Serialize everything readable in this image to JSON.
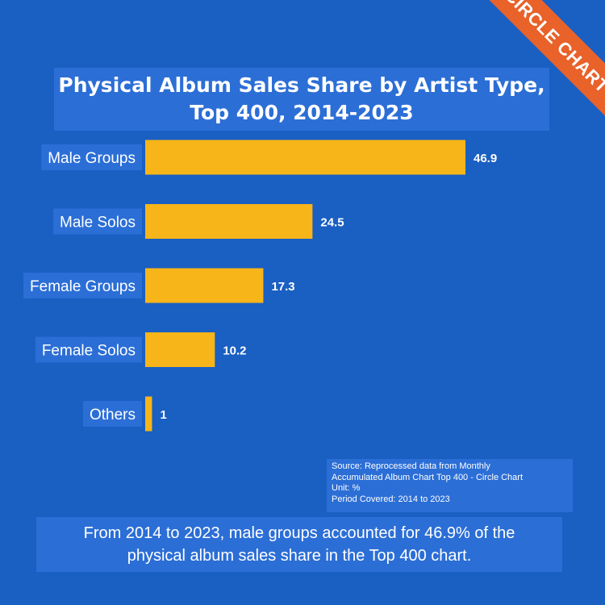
{
  "brand": {
    "ribbon_text": "CIRCLE CHART",
    "ribbon_color": "#e8622a"
  },
  "colors": {
    "background": "#1a5fc2",
    "panel": "#2b6ed6",
    "bar": "#f7b519",
    "text": "#ffffff"
  },
  "chart_data": {
    "type": "bar",
    "orientation": "horizontal",
    "title": "Physical Album Sales Share by Artist Type,\nTop 400, 2014-2023",
    "categories": [
      "Male Groups",
      "Male Solos",
      "Female Groups",
      "Female Solos",
      "Others"
    ],
    "values": [
      46.9,
      24.5,
      17.3,
      10.2,
      1
    ],
    "value_labels": [
      "46.9",
      "24.5",
      "17.3",
      "10.2",
      "1"
    ],
    "xlim": [
      0,
      50
    ],
    "grid": false,
    "legend": "none"
  },
  "source": {
    "line1": "Source: Reprocessed data from Monthly",
    "line2": "Accumulated Album Chart Top 400 - Circle Chart",
    "line3": "Unit: %",
    "line4": "Period Covered: 2014 to 2023"
  },
  "footer": {
    "text": "From 2014 to 2023, male groups accounted for 46.9% of the\nphysical album sales share in the Top 400 chart."
  }
}
